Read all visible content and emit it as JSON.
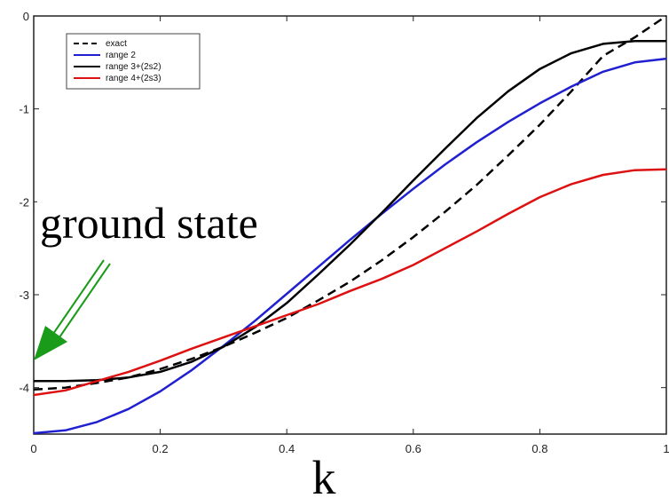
{
  "chart_data": {
    "type": "line",
    "title": "",
    "xlabel": "k",
    "ylabel": "",
    "xlim": [
      0,
      1
    ],
    "ylim": [
      -4.5,
      0
    ],
    "xticks": [
      0,
      0.2,
      0.4,
      0.6,
      0.8,
      1
    ],
    "xtick_labels": [
      "0",
      "0.2",
      "0.4",
      "0.6",
      "0.8",
      "1"
    ],
    "yticks": [
      0,
      -1,
      -2,
      -3,
      -4
    ],
    "ytick_labels": [
      "0",
      "-1",
      "-2",
      "-3",
      "-4"
    ],
    "grid": false,
    "legend_position": "top-left",
    "x": [
      0,
      0.05,
      0.1,
      0.15,
      0.2,
      0.25,
      0.3,
      0.35,
      0.4,
      0.45,
      0.5,
      0.55,
      0.6,
      0.65,
      0.7,
      0.75,
      0.8,
      0.85,
      0.9,
      0.95,
      1.0
    ],
    "series": [
      {
        "name": "exact",
        "color": "#000000",
        "style": "dashed",
        "values": [
          -4.02,
          -4.0,
          -3.95,
          -3.89,
          -3.8,
          -3.69,
          -3.56,
          -3.41,
          -3.25,
          -3.06,
          -2.86,
          -2.63,
          -2.38,
          -2.11,
          -1.82,
          -1.5,
          -1.17,
          -0.81,
          -0.43,
          -0.23,
          0.0
        ]
      },
      {
        "name": "range 2",
        "color": "#2020d0",
        "style": "solid",
        "values": [
          -4.49,
          -4.46,
          -4.37,
          -4.23,
          -4.04,
          -3.81,
          -3.55,
          -3.28,
          -2.99,
          -2.7,
          -2.41,
          -2.13,
          -1.86,
          -1.6,
          -1.36,
          -1.14,
          -0.94,
          -0.76,
          -0.6,
          -0.5,
          -0.46
        ]
      },
      {
        "name": "range 3+(2s2)",
        "color": "#000000",
        "style": "solid",
        "values": [
          -3.93,
          -3.93,
          -3.92,
          -3.89,
          -3.83,
          -3.72,
          -3.56,
          -3.35,
          -3.09,
          -2.78,
          -2.46,
          -2.12,
          -1.77,
          -1.43,
          -1.1,
          -0.81,
          -0.57,
          -0.4,
          -0.3,
          -0.27,
          -0.27
        ]
      },
      {
        "name": "range 4+(2s3)",
        "color": "#dd1111",
        "style": "solid",
        "values": [
          -4.08,
          -4.03,
          -3.93,
          -3.83,
          -3.71,
          -3.58,
          -3.46,
          -3.34,
          -3.22,
          -3.1,
          -2.96,
          -2.83,
          -2.68,
          -2.5,
          -2.32,
          -2.13,
          -1.95,
          -1.81,
          -1.71,
          -1.66,
          -1.65
        ]
      }
    ],
    "annotations": [
      {
        "text": "ground state",
        "arrow_color": "#1a9b1a"
      }
    ]
  }
}
